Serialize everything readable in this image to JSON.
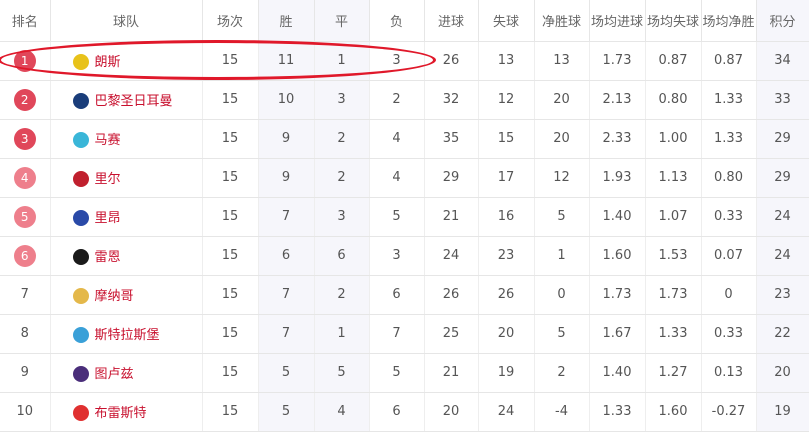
{
  "headers": [
    "排名",
    "球队",
    "场次",
    "胜",
    "平",
    "负",
    "进球",
    "失球",
    "净胜球",
    "场均进球",
    "场均失球",
    "场均净胜",
    "积分"
  ],
  "colors": {
    "badge_top": "#e0475a",
    "badge_mid": "#ee7f8c",
    "team_text": "#c8102e",
    "highlight_ellipse": "#e0182a"
  },
  "rows": [
    {
      "rank": "1",
      "team": "朗斯",
      "logo": "#e8c21a",
      "p": "15",
      "w": "11",
      "d": "1",
      "l": "3",
      "gf": "26",
      "ga": "13",
      "gd": "13",
      "agf": "1.73",
      "aga": "0.87",
      "agd": "0.87",
      "pts": "34"
    },
    {
      "rank": "2",
      "team": "巴黎圣日耳曼",
      "logo": "#1a3d7a",
      "p": "15",
      "w": "10",
      "d": "3",
      "l": "2",
      "gf": "32",
      "ga": "12",
      "gd": "20",
      "agf": "2.13",
      "aga": "0.80",
      "agd": "1.33",
      "pts": "33"
    },
    {
      "rank": "3",
      "team": "马赛",
      "logo": "#3ab6d8",
      "p": "15",
      "w": "9",
      "d": "2",
      "l": "4",
      "gf": "35",
      "ga": "15",
      "gd": "20",
      "agf": "2.33",
      "aga": "1.00",
      "agd": "1.33",
      "pts": "29"
    },
    {
      "rank": "4",
      "team": "里尔",
      "logo": "#c0202e",
      "p": "15",
      "w": "9",
      "d": "2",
      "l": "4",
      "gf": "29",
      "ga": "17",
      "gd": "12",
      "agf": "1.93",
      "aga": "1.13",
      "agd": "0.80",
      "pts": "29"
    },
    {
      "rank": "5",
      "team": "里昂",
      "logo": "#2a4aa8",
      "p": "15",
      "w": "7",
      "d": "3",
      "l": "5",
      "gf": "21",
      "ga": "16",
      "gd": "5",
      "agf": "1.40",
      "aga": "1.07",
      "agd": "0.33",
      "pts": "24"
    },
    {
      "rank": "6",
      "team": "雷恩",
      "logo": "#1a1a1a",
      "p": "15",
      "w": "6",
      "d": "6",
      "l": "3",
      "gf": "24",
      "ga": "23",
      "gd": "1",
      "agf": "1.60",
      "aga": "1.53",
      "agd": "0.07",
      "pts": "24"
    },
    {
      "rank": "7",
      "team": "摩纳哥",
      "logo": "#e4b84a",
      "p": "15",
      "w": "7",
      "d": "2",
      "l": "6",
      "gf": "26",
      "ga": "26",
      "gd": "0",
      "agf": "1.73",
      "aga": "1.73",
      "agd": "0",
      "pts": "23"
    },
    {
      "rank": "8",
      "team": "斯特拉斯堡",
      "logo": "#3aa0d8",
      "p": "15",
      "w": "7",
      "d": "1",
      "l": "7",
      "gf": "25",
      "ga": "20",
      "gd": "5",
      "agf": "1.67",
      "aga": "1.33",
      "agd": "0.33",
      "pts": "22"
    },
    {
      "rank": "9",
      "team": "图卢兹",
      "logo": "#4a2e7a",
      "p": "15",
      "w": "5",
      "d": "5",
      "l": "5",
      "gf": "21",
      "ga": "19",
      "gd": "2",
      "agf": "1.40",
      "aga": "1.27",
      "agd": "0.13",
      "pts": "20"
    },
    {
      "rank": "10",
      "team": "布雷斯特",
      "logo": "#e03030",
      "p": "15",
      "w": "5",
      "d": "4",
      "l": "6",
      "gf": "20",
      "ga": "24",
      "gd": "-4",
      "agf": "1.33",
      "aga": "1.60",
      "agd": "-0.27",
      "pts": "19"
    }
  ]
}
